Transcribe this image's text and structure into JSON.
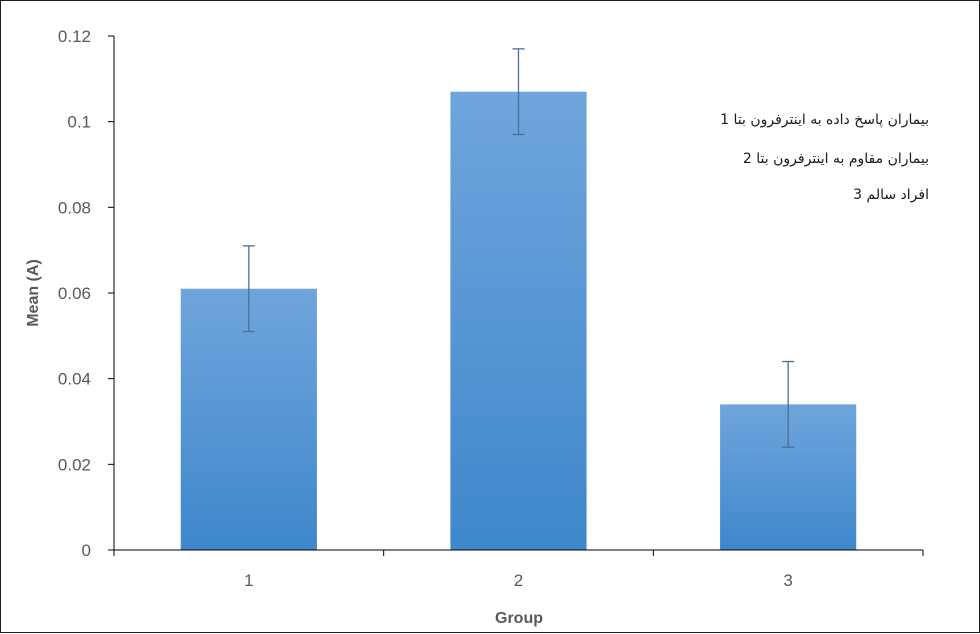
{
  "chart_data": {
    "type": "bar",
    "categories": [
      "1",
      "2",
      "3"
    ],
    "values": [
      0.061,
      0.107,
      0.034
    ],
    "error": [
      0.01,
      0.01,
      0.01
    ],
    "title": "",
    "xlabel": "Group",
    "ylabel": "Mean (A)",
    "ylim": [
      0,
      0.12
    ],
    "yticks": [
      "0",
      "0.02",
      "0.04",
      "0.06",
      "0.08",
      "0.1",
      "0.12"
    ],
    "grid": false,
    "legend": "none",
    "colors": {
      "bar_top": "#6fa5dc",
      "bar_bottom": "#3f87cc",
      "error_bar": "#4a6f96",
      "axis": "#000000",
      "text": "#595959"
    },
    "annotations": [
      "بیماران  پاسخ داده به اینترفرون بتا 1",
      "بیماران مقاوم به اینترفرون بتا 2",
      "افراد سالم 3"
    ]
  }
}
